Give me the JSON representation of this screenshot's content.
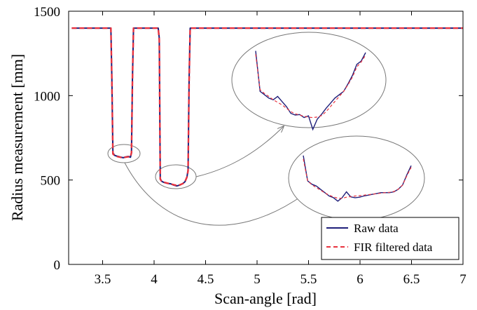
{
  "chart_data": {
    "type": "line",
    "xlabel": "Scan-angle [rad]",
    "ylabel": "Radius measurement [mm]",
    "xlim": [
      3.17,
      7
    ],
    "ylim": [
      0,
      1500
    ],
    "xticks": [
      "3.5",
      "4",
      "4.5",
      "5",
      "5.5",
      "6",
      "6.5",
      "7"
    ],
    "yticks": [
      "0",
      "500",
      "1000",
      "1500"
    ],
    "grid": false,
    "legend_position": "bottom-right",
    "series": [
      {
        "name": "Raw data",
        "color": "#1f1f7a",
        "style": "solid",
        "x": [
          3.2,
          3.58,
          3.59,
          3.6,
          3.62,
          3.65,
          3.68,
          3.7,
          3.72,
          3.75,
          3.77,
          3.78,
          3.79,
          3.8,
          3.81,
          3.83,
          3.9,
          4.0,
          4.04,
          4.05,
          4.06,
          4.07,
          4.08,
          4.1,
          4.13,
          4.16,
          4.19,
          4.22,
          4.25,
          4.28,
          4.3,
          4.32,
          4.33,
          4.34,
          4.35,
          4.36,
          4.5,
          5.0,
          5.5,
          6.0,
          6.5,
          7.0
        ],
        "y": [
          1400,
          1400,
          1100,
          660,
          645,
          640,
          635,
          632,
          636,
          640,
          635,
          660,
          1100,
          1400,
          1400,
          1400,
          1400,
          1400,
          1400,
          1340,
          510,
          495,
          490,
          485,
          480,
          478,
          470,
          465,
          470,
          480,
          490,
          520,
          560,
          1100,
          1400,
          1400,
          1400,
          1400,
          1400,
          1400,
          1400,
          1400
        ]
      },
      {
        "name": "FIR filtered data",
        "color": "#e8333f",
        "style": "dashed",
        "x": [
          3.2,
          3.58,
          3.59,
          3.6,
          3.62,
          3.65,
          3.68,
          3.7,
          3.72,
          3.75,
          3.77,
          3.78,
          3.79,
          3.8,
          3.81,
          3.83,
          3.9,
          4.0,
          4.04,
          4.05,
          4.06,
          4.07,
          4.08,
          4.1,
          4.13,
          4.16,
          4.19,
          4.22,
          4.25,
          4.28,
          4.3,
          4.32,
          4.33,
          4.34,
          4.35,
          4.36,
          4.5,
          5.0,
          5.5,
          6.0,
          6.5,
          7.0
        ],
        "y": [
          1400,
          1400,
          1090,
          655,
          643,
          638,
          634,
          633,
          635,
          638,
          636,
          662,
          1090,
          1400,
          1400,
          1400,
          1400,
          1400,
          1400,
          1330,
          505,
          495,
          490,
          486,
          481,
          477,
          472,
          468,
          471,
          479,
          490,
          518,
          555,
          1090,
          1400,
          1400,
          1400,
          1400,
          1400,
          1400,
          1400,
          1400
        ]
      }
    ],
    "insets": [
      {
        "name": "zoom-second-dip",
        "raw_y": [
          1265,
          1025,
          1005,
          985,
          975,
          995,
          965,
          935,
          895,
          885,
          888,
          870,
          880,
          800,
          860,
          890,
          925,
          955,
          985,
          1005,
          1025,
          1070,
          1120,
          1185,
          1205,
          1255
        ],
        "fir_y": [
          1245,
          1035,
          1012,
          995,
          975,
          960,
          945,
          925,
          905,
          892,
          885,
          878,
          872,
          870,
          873,
          882,
          905,
          935,
          965,
          995,
          1025,
          1065,
          1110,
          1170,
          1200,
          1240
        ]
      },
      {
        "name": "zoom-first-dip",
        "raw_y": [
          645,
          495,
          475,
          465,
          445,
          425,
          405,
          395,
          375,
          395,
          430,
          400,
          395,
          398,
          405,
          410,
          415,
          420,
          425,
          425,
          425,
          430,
          445,
          470,
          530,
          585
        ],
        "fir_y": [
          625,
          495,
          472,
          455,
          440,
          424,
          410,
          400,
          392,
          392,
          398,
          402,
          405,
          407,
          410,
          413,
          416,
          419,
          422,
          425,
          427,
          432,
          445,
          470,
          525,
          575
        ]
      }
    ]
  }
}
